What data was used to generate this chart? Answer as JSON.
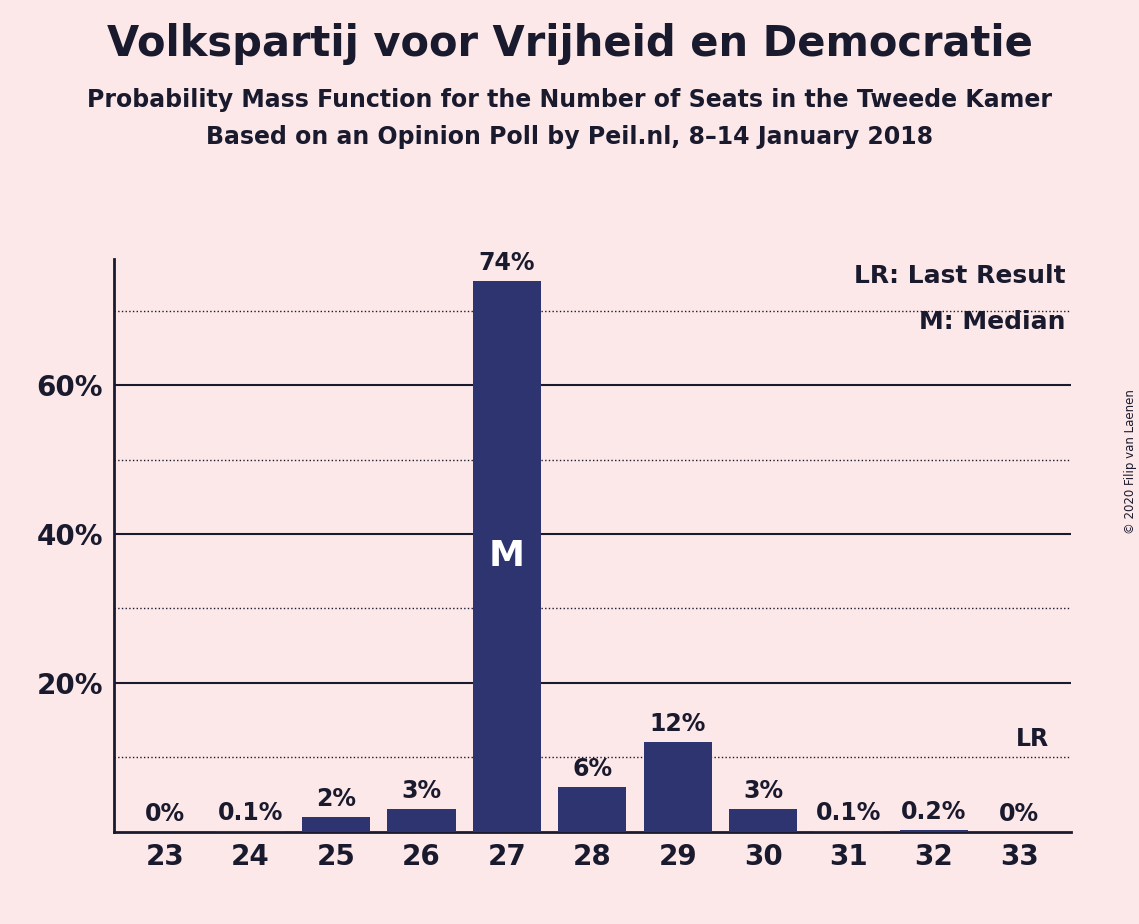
{
  "title": "Volkspartij voor Vrijheid en Democratie",
  "subtitle1": "Probability Mass Function for the Number of Seats in the Tweede Kamer",
  "subtitle2": "Based on an Opinion Poll by Peil.nl, 8–14 January 2018",
  "copyright": "© 2020 Filip van Laenen",
  "categories": [
    23,
    24,
    25,
    26,
    27,
    28,
    29,
    30,
    31,
    32,
    33
  ],
  "values": [
    0.0,
    0.1,
    2.0,
    3.0,
    74.0,
    6.0,
    12.0,
    3.0,
    0.1,
    0.2,
    0.0
  ],
  "bar_color": "#2e3470",
  "background_color": "#fce8e8",
  "ylim": [
    0,
    77
  ],
  "ytick_values": [
    20,
    40,
    60
  ],
  "ytick_labels": [
    "20%",
    "40%",
    "60%"
  ],
  "dotted_lines": [
    10,
    30,
    50,
    70
  ],
  "solid_lines": [
    20,
    40,
    60
  ],
  "lr_line": 10,
  "median_seat": 27,
  "lr_seat": 33,
  "legend_lr": "LR: Last Result",
  "legend_m": "M: Median",
  "bar_labels": [
    "0%",
    "0.1%",
    "2%",
    "3%",
    "74%",
    "6%",
    "12%",
    "3%",
    "0.1%",
    "0.2%",
    "0%"
  ],
  "title_fontsize": 30,
  "subtitle_fontsize": 17,
  "axis_label_fontsize": 20,
  "bar_label_fontsize": 17,
  "median_label_fontsize": 26,
  "legend_fontsize": 18,
  "text_color": "#1a1a2e"
}
